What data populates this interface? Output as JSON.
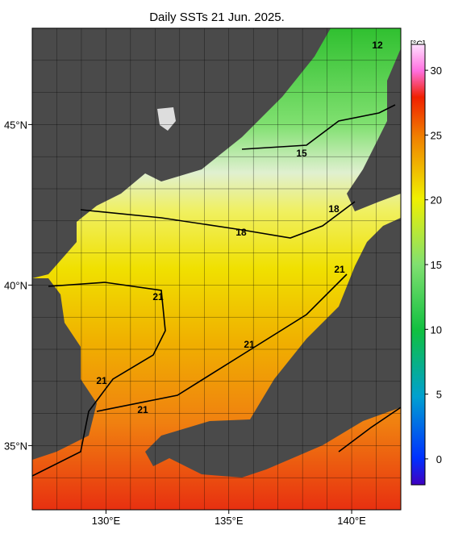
{
  "title": "Daily SSTs 21 Jun. 2025.",
  "map": {
    "lon_range": [
      127,
      142
    ],
    "lat_range": [
      33,
      48
    ],
    "lon_ticks": [
      {
        "value": 130,
        "label": "130°E"
      },
      {
        "value": 135,
        "label": "135°E"
      },
      {
        "value": 140,
        "label": "140°E"
      }
    ],
    "lat_ticks": [
      {
        "value": 45,
        "label": "45°N"
      },
      {
        "value": 40,
        "label": "40°N"
      },
      {
        "value": 35,
        "label": "35°N"
      }
    ]
  },
  "colorbar": {
    "unit": "[°C]",
    "range": [
      -2,
      32
    ],
    "ticks": [
      0,
      5,
      10,
      15,
      20,
      25,
      30
    ]
  },
  "contour_labels": [
    "12",
    "15",
    "18",
    "18",
    "21",
    "21",
    "21",
    "21",
    "21"
  ]
}
